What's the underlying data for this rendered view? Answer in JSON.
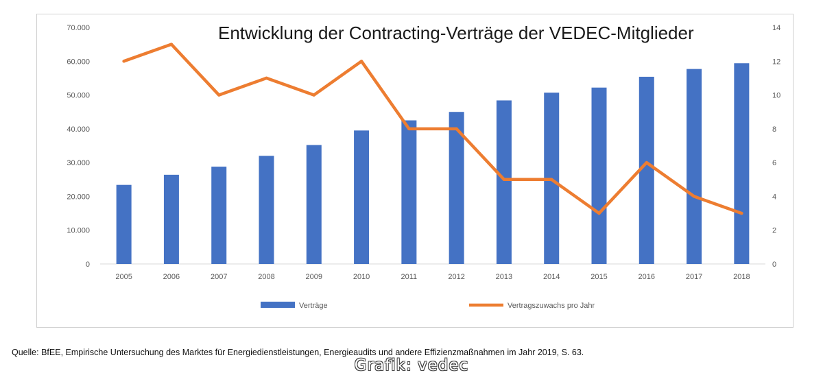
{
  "chart_data": {
    "type": "bar+line",
    "title": "Entwicklung der Contracting-Verträge der VEDEC-Mitglieder",
    "categories": [
      "2005",
      "2006",
      "2007",
      "2008",
      "2009",
      "2010",
      "2011",
      "2012",
      "2013",
      "2014",
      "2015",
      "2016",
      "2017",
      "2018"
    ],
    "series": [
      {
        "name": "Verträge",
        "type": "bar",
        "axis": "left",
        "color": "#4472c4",
        "values": [
          23400,
          26400,
          28800,
          32000,
          35200,
          39500,
          42500,
          45000,
          48400,
          50700,
          52200,
          55400,
          57700,
          59400
        ]
      },
      {
        "name": "Vertragszuwachs pro Jahr",
        "type": "line",
        "axis": "right",
        "color": "#ed7d31",
        "values": [
          12,
          13,
          10,
          11,
          10,
          12,
          8,
          8,
          5,
          5,
          3,
          6,
          4,
          3
        ]
      }
    ],
    "y_left": {
      "min": 0,
      "max": 70000,
      "ticks": [
        "0",
        "10.000",
        "20.000",
        "30.000",
        "40.000",
        "50.000",
        "60.000",
        "70.000"
      ]
    },
    "y_right": {
      "min": 0,
      "max": 14,
      "ticks": [
        "0",
        "2",
        "4",
        "6",
        "8",
        "10",
        "12",
        "14"
      ]
    },
    "grid": false,
    "legend": "bottom"
  },
  "footer": {
    "source": "Quelle: BfEE, Empirische Untersuchung des Marktes für Energiedienstleistungen, Energieaudits und andere Effizienzmaßnahmen im Jahr 2019, S. 63.",
    "credit": "Grafik: vedec"
  }
}
